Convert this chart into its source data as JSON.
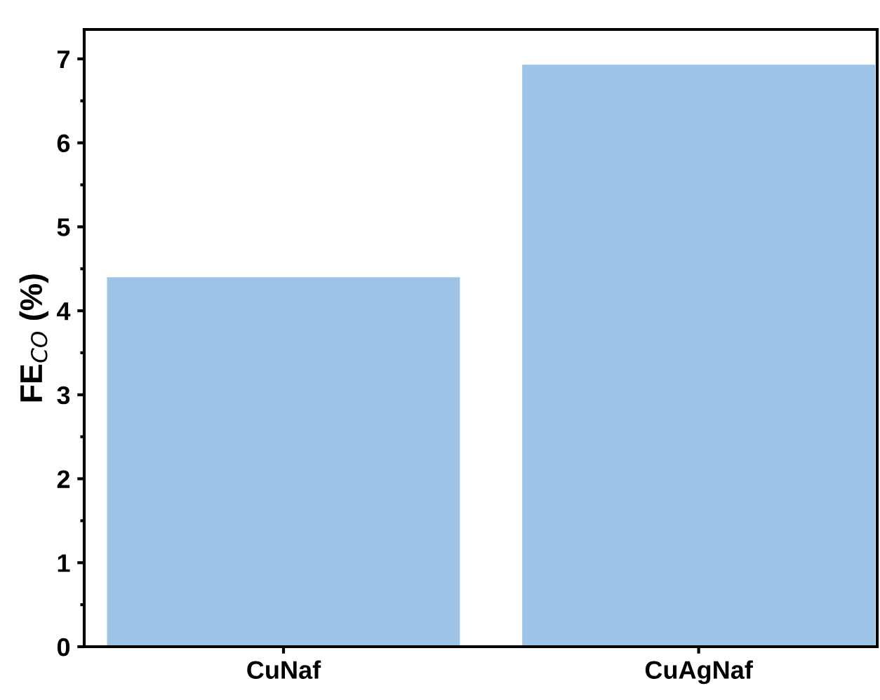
{
  "chart_data": {
    "type": "bar",
    "ylabel": "FE$_{CO}$ (%)",
    "categories": [
      "CuNaf",
      "CuAgNaf"
    ],
    "values": [
      4.4,
      6.93
    ],
    "color": "#9dc3e6",
    "ylim": [
      0,
      7.35
    ],
    "yticks": [
      0,
      1,
      2,
      3,
      4,
      5,
      6,
      7
    ],
    "grid": false,
    "legend": false
  }
}
